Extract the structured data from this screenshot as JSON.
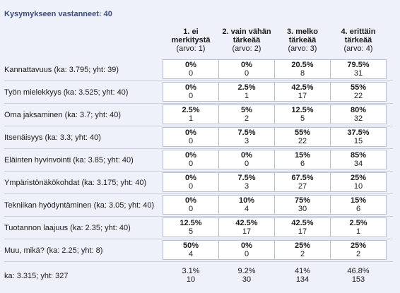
{
  "title": "Kysymykseen vastanneet: 40",
  "columns": [
    {
      "line1": "1. ei",
      "line2": "merkitystä",
      "line3": "(arvo: 1)"
    },
    {
      "line1": "2. vain vähän",
      "line2": "tärkeää",
      "line3": "(arvo: 2)"
    },
    {
      "line1": "3. melko",
      "line2": "tärkeää",
      "line3": "(arvo: 3)"
    },
    {
      "line1": "4. erittäin",
      "line2": "tärkeää",
      "line3": "(arvo: 4)"
    }
  ],
  "rows": [
    {
      "label": "Kannattavuus (ka: 3.795; yht: 39)",
      "cells": [
        [
          "0%",
          "0"
        ],
        [
          "0%",
          "0"
        ],
        [
          "20.5%",
          "8"
        ],
        [
          "79.5%",
          "31"
        ]
      ]
    },
    {
      "label": "Työn mielekkyys (ka: 3.525; yht: 40)",
      "cells": [
        [
          "0%",
          "0"
        ],
        [
          "2.5%",
          "1"
        ],
        [
          "42.5%",
          "17"
        ],
        [
          "55%",
          "22"
        ]
      ]
    },
    {
      "label": "Oma jaksaminen (ka: 3.7; yht: 40)",
      "cells": [
        [
          "2.5%",
          "1"
        ],
        [
          "5%",
          "2"
        ],
        [
          "12.5%",
          "5"
        ],
        [
          "80%",
          "32"
        ]
      ]
    },
    {
      "label": "Itsenäisyys (ka: 3.3; yht: 40)",
      "cells": [
        [
          "0%",
          "0"
        ],
        [
          "7.5%",
          "3"
        ],
        [
          "55%",
          "22"
        ],
        [
          "37.5%",
          "15"
        ]
      ]
    },
    {
      "label": "Eläinten hyvinvointi (ka: 3.85; yht: 40)",
      "cells": [
        [
          "0%",
          "0"
        ],
        [
          "0%",
          "0"
        ],
        [
          "15%",
          "6"
        ],
        [
          "85%",
          "34"
        ]
      ]
    },
    {
      "label": "Ympäristönäkökohdat (ka: 3.175; yht: 40)",
      "cells": [
        [
          "0%",
          "0"
        ],
        [
          "7.5%",
          "3"
        ],
        [
          "67.5%",
          "27"
        ],
        [
          "25%",
          "10"
        ]
      ]
    },
    {
      "label": "Tekniikan hyödyntäminen (ka: 3.05; yht: 40)",
      "cells": [
        [
          "0%",
          "0"
        ],
        [
          "10%",
          "4"
        ],
        [
          "75%",
          "30"
        ],
        [
          "15%",
          "6"
        ]
      ]
    },
    {
      "label": "Tuotannon laajuus (ka: 2.35; yht: 40)",
      "cells": [
        [
          "12.5%",
          "5"
        ],
        [
          "42.5%",
          "17"
        ],
        [
          "42.5%",
          "17"
        ],
        [
          "2.5%",
          "1"
        ]
      ]
    },
    {
      "label": "Muu, mikä? (ka: 2.25; yht: 8)",
      "cells": [
        [
          "50%",
          "4"
        ],
        [
          "0%",
          "0"
        ],
        [
          "25%",
          "2"
        ],
        [
          "25%",
          "2"
        ]
      ]
    },
    {
      "label": "ka: 3.315; yht: 327",
      "cells": [
        [
          "3.1%",
          "10"
        ],
        [
          "9.2%",
          "30"
        ],
        [
          "41%",
          "134"
        ],
        [
          "46.8%",
          "153"
        ]
      ]
    }
  ]
}
